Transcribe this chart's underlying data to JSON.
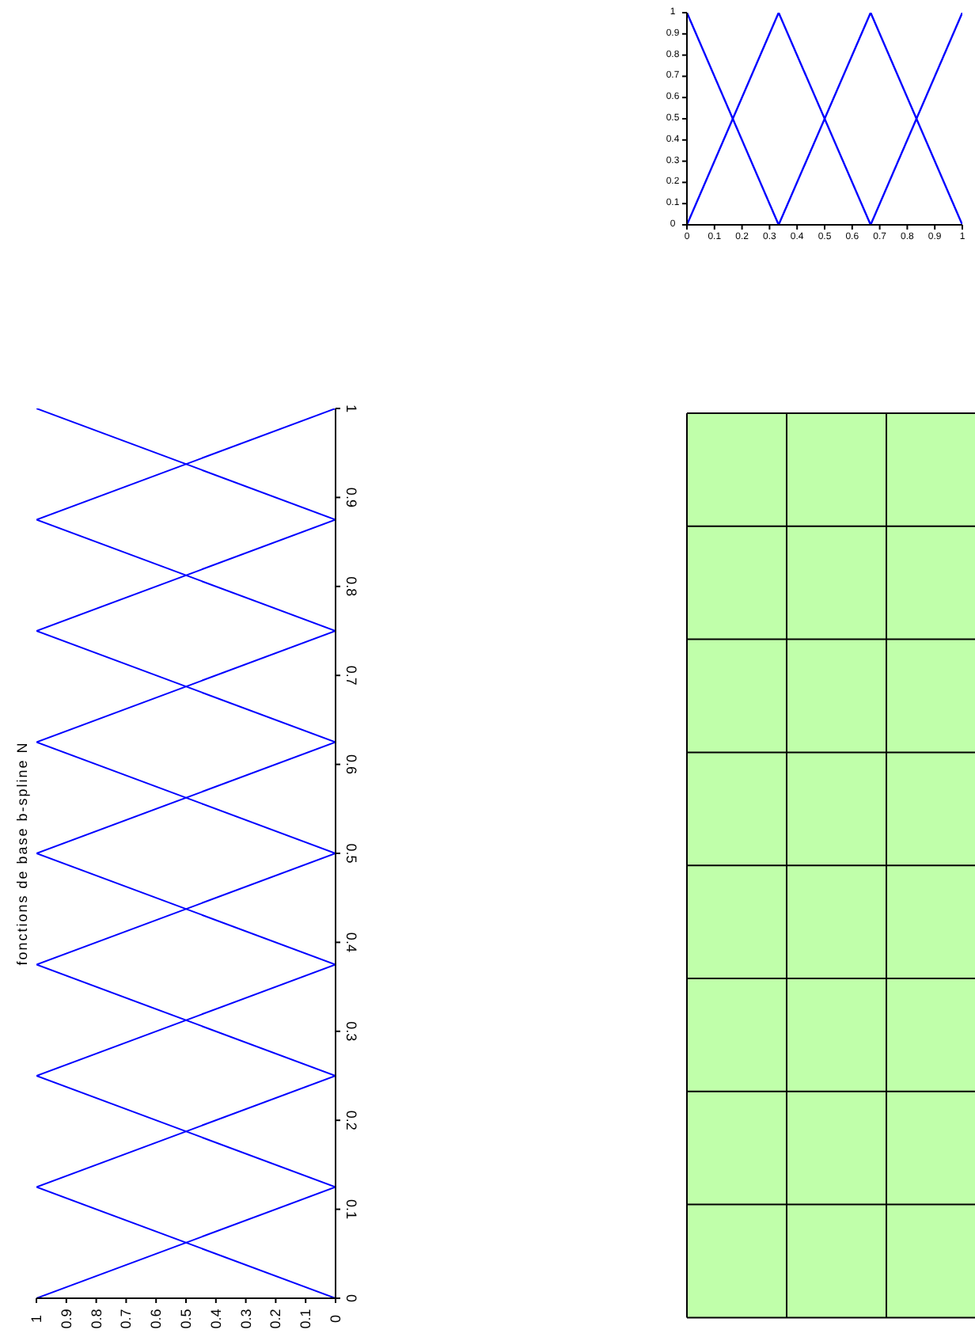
{
  "chart_data": [
    {
      "type": "line",
      "xlim": [
        0,
        1
      ],
      "xticks": [
        0,
        0.1,
        0.2,
        0.3,
        0.4,
        0.5,
        0.6,
        0.7,
        0.8,
        0.9,
        1
      ],
      "ylim": [
        0,
        1
      ],
      "yticks": [
        0,
        0.1,
        0.2,
        0.3,
        0.4,
        0.5,
        0.6,
        0.7,
        0.8,
        0.9,
        1
      ],
      "grid": false,
      "legend": false,
      "series": [
        {
          "color": "#0000ff",
          "x": [
            0,
            0.333
          ],
          "values": [
            1,
            0
          ]
        },
        {
          "color": "#0000ff",
          "x": [
            0,
            0.333,
            0.667
          ],
          "values": [
            0,
            1,
            0
          ]
        },
        {
          "color": "#0000ff",
          "x": [
            0.333,
            0.667,
            1
          ],
          "values": [
            0,
            1,
            0
          ]
        },
        {
          "color": "#0000ff",
          "x": [
            0.667,
            1
          ],
          "values": [
            0,
            1
          ]
        }
      ]
    },
    {
      "type": "line",
      "ylabel": "fonctions de base b-spline N",
      "xlim": [
        1,
        0
      ],
      "xticks": [
        1,
        0.9,
        0.8,
        0.7,
        0.6,
        0.5,
        0.4,
        0.3,
        0.2,
        0.1,
        0
      ],
      "ylim": [
        0,
        1
      ],
      "yticks": [
        0,
        0.1,
        0.2,
        0.3,
        0.4,
        0.5,
        0.6,
        0.7,
        0.8,
        0.9,
        1
      ],
      "grid": false,
      "legend": false,
      "series": [
        {
          "color": "#0000ff",
          "x": [
            1,
            0
          ],
          "values": [
            0,
            0.125
          ]
        },
        {
          "color": "#0000ff",
          "x": [
            0,
            1,
            0
          ],
          "values": [
            0,
            0.125,
            0.25
          ]
        },
        {
          "color": "#0000ff",
          "x": [
            0,
            1,
            0
          ],
          "values": [
            0.125,
            0.25,
            0.375
          ]
        },
        {
          "color": "#0000ff",
          "x": [
            0,
            1,
            0
          ],
          "values": [
            0.25,
            0.375,
            0.5
          ]
        },
        {
          "color": "#0000ff",
          "x": [
            0,
            1,
            0
          ],
          "values": [
            0.375,
            0.5,
            0.625
          ]
        },
        {
          "color": "#0000ff",
          "x": [
            0,
            1,
            0
          ],
          "values": [
            0.5,
            0.625,
            0.75
          ]
        },
        {
          "color": "#0000ff",
          "x": [
            0,
            1,
            0
          ],
          "values": [
            0.625,
            0.75,
            0.875
          ]
        },
        {
          "color": "#0000ff",
          "x": [
            0,
            1,
            0
          ],
          "values": [
            0.75,
            0.875,
            1
          ]
        },
        {
          "color": "#0000ff",
          "x": [
            0,
            1
          ],
          "values": [
            0.875,
            1
          ]
        }
      ]
    }
  ]
}
